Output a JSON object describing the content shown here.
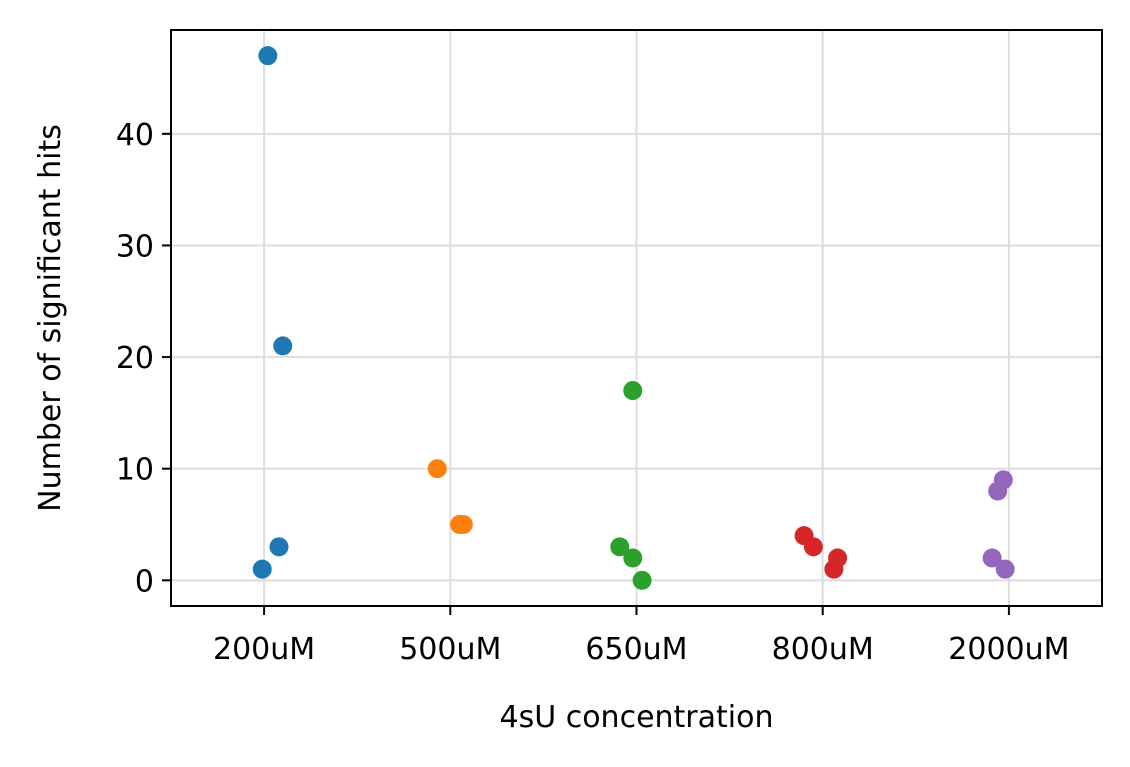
{
  "chart_data": {
    "type": "scatter",
    "title": "",
    "xlabel": "4sU concentration",
    "ylabel": "Number of significant hits",
    "categories": [
      "200uM",
      "500uM",
      "650uM",
      "800uM",
      "2000uM"
    ],
    "xlim": [
      -0.5,
      4.5
    ],
    "ylim": [
      -2.3,
      49.3
    ],
    "yticks": [
      0,
      10,
      20,
      30,
      40
    ],
    "grid": true,
    "legend": "none",
    "series": [
      {
        "name": "200uM",
        "color": "#1f77b4",
        "points": [
          {
            "x": 0.02,
            "y": 47
          },
          {
            "x": 0.1,
            "y": 21
          },
          {
            "x": 0.08,
            "y": 3
          },
          {
            "x": -0.01,
            "y": 1
          }
        ]
      },
      {
        "name": "500uM",
        "color": "#ff7f0e",
        "points": [
          {
            "x": 0.93,
            "y": 10
          },
          {
            "x": 1.05,
            "y": 5
          },
          {
            "x": 1.07,
            "y": 5
          }
        ]
      },
      {
        "name": "650uM",
        "color": "#2ca02c",
        "points": [
          {
            "x": 1.98,
            "y": 17
          },
          {
            "x": 1.91,
            "y": 3
          },
          {
            "x": 1.98,
            "y": 2
          },
          {
            "x": 2.03,
            "y": 0
          }
        ]
      },
      {
        "name": "800uM",
        "color": "#d62728",
        "points": [
          {
            "x": 2.9,
            "y": 4
          },
          {
            "x": 2.95,
            "y": 3
          },
          {
            "x": 3.08,
            "y": 2
          },
          {
            "x": 3.06,
            "y": 1
          }
        ]
      },
      {
        "name": "2000uM",
        "color": "#9467bd",
        "points": [
          {
            "x": 3.97,
            "y": 9
          },
          {
            "x": 3.94,
            "y": 8
          },
          {
            "x": 3.91,
            "y": 2
          },
          {
            "x": 3.98,
            "y": 1
          }
        ]
      }
    ]
  }
}
